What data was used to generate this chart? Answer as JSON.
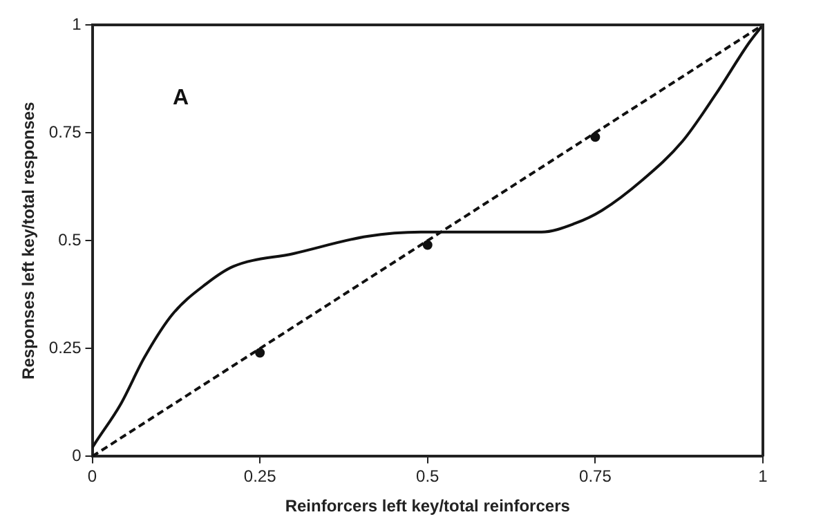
{
  "chart_data": {
    "type": "line",
    "xlabel": "Reinforcers left key/total reinforcers",
    "ylabel": "Responses left key/total responses",
    "annotations": [
      "A"
    ],
    "xlim": [
      0,
      1
    ],
    "ylim": [
      0,
      1
    ],
    "xticks": [
      0,
      0.25,
      0.5,
      0.75,
      1
    ],
    "yticks": [
      0,
      0.25,
      0.5,
      0.75,
      1
    ],
    "grid": false,
    "legend": false,
    "series": [
      {
        "type": "line",
        "color": "#111111",
        "line_style": "solid",
        "marker": "none",
        "x": [
          0,
          0.004,
          0.042,
          0.078,
          0.12,
          0.17,
          0.21,
          0.3,
          0.41,
          0.49,
          0.6,
          0.67,
          0.72,
          0.76,
          0.82,
          0.88,
          0.93,
          0.98,
          1
        ],
        "values": [
          0.02,
          0.03,
          0.12,
          0.23,
          0.33,
          0.4,
          0.44,
          0.47,
          0.51,
          0.52,
          0.52,
          0.52,
          0.54,
          0.57,
          0.64,
          0.73,
          0.84,
          0.96,
          1
        ]
      },
      {
        "type": "line",
        "color": "#111111",
        "line_style": "dashed",
        "marker": "none",
        "x": [
          0,
          1
        ],
        "values": [
          0,
          1
        ]
      },
      {
        "type": "scatter",
        "color": "#111111",
        "marker": "circle",
        "x": [
          0.25,
          0.5,
          0.75
        ],
        "values": [
          0.24,
          0.49,
          0.74
        ]
      }
    ]
  }
}
